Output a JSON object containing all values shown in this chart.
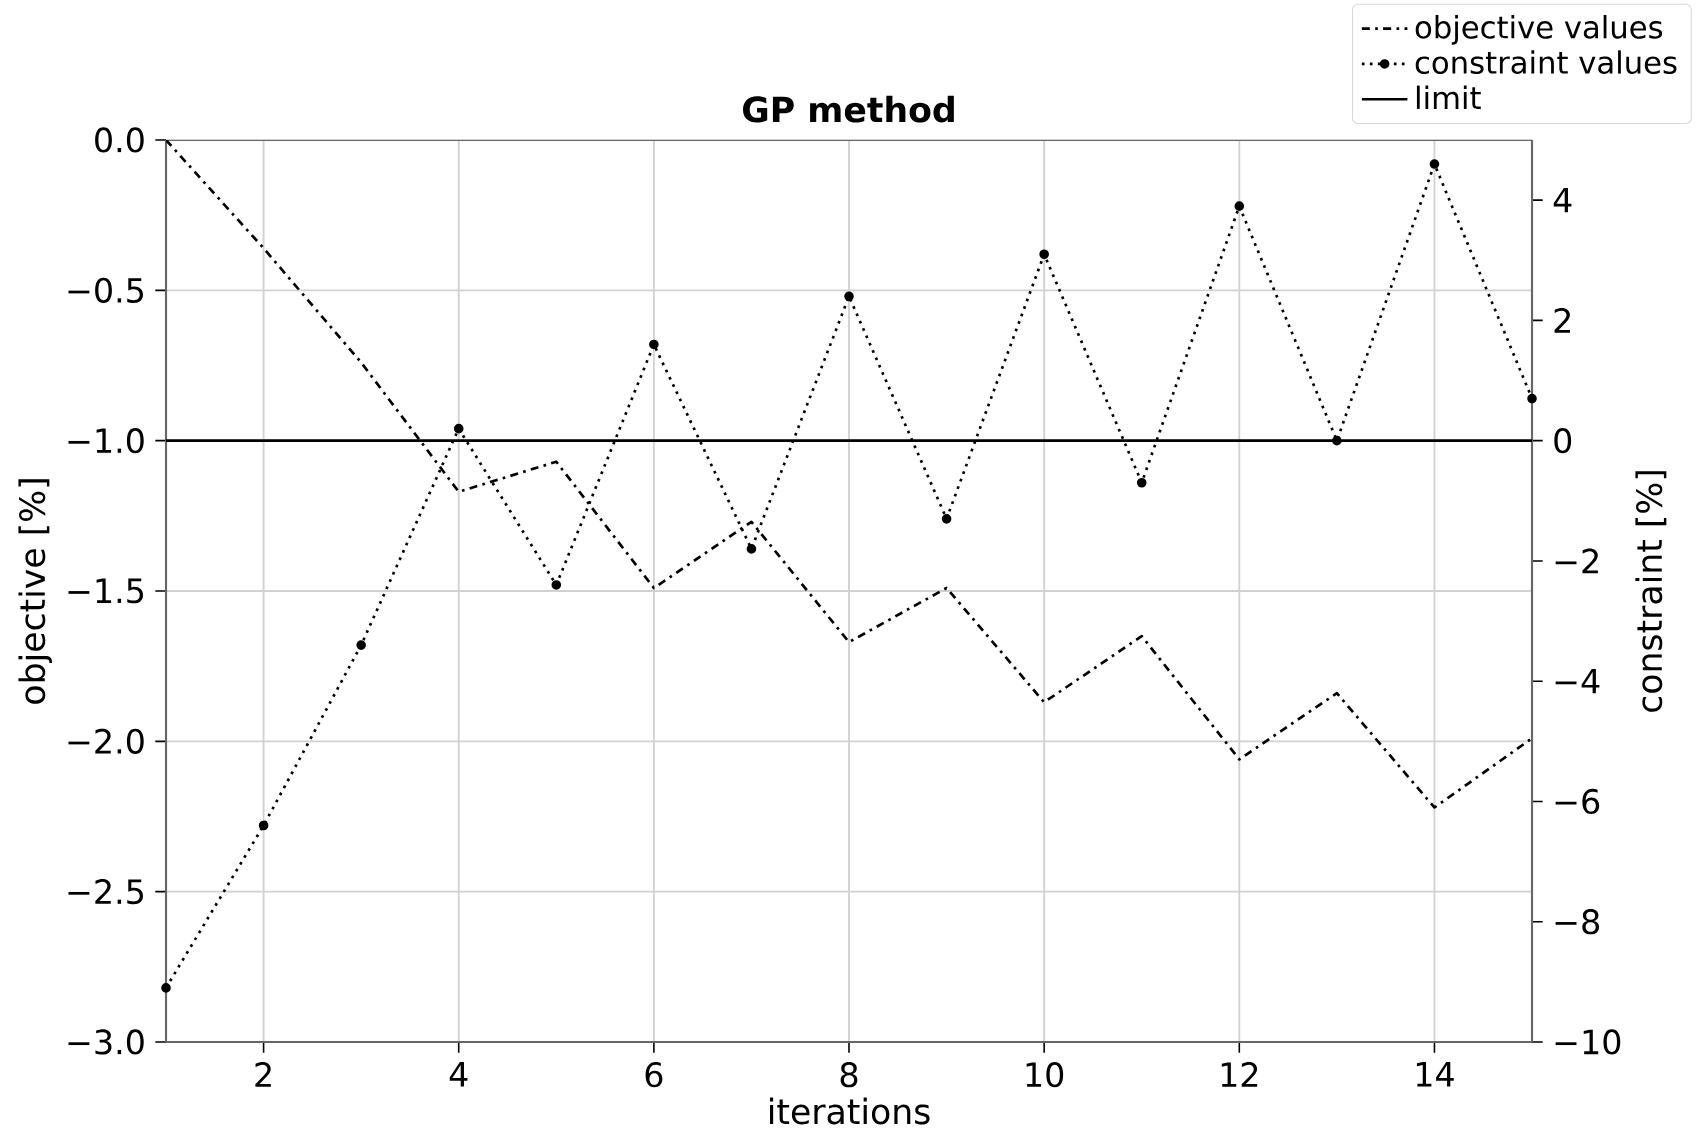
{
  "chart_data": {
    "type": "line",
    "title": "GP method",
    "xlabel": "iterations",
    "ylabel": "objective [%]",
    "y2label": "constraint [%]",
    "x": [
      1,
      2,
      3,
      4,
      5,
      6,
      7,
      8,
      9,
      10,
      11,
      12,
      13,
      14,
      15
    ],
    "series": [
      {
        "name": "objective values",
        "color": "#000000",
        "line_style": "dashdot",
        "marker": "none",
        "values": [
          0.0,
          -0.36,
          -0.74,
          -1.17,
          -1.07,
          -1.49,
          -1.27,
          -1.67,
          -1.49,
          -1.87,
          -1.65,
          -2.06,
          -1.84,
          -2.22,
          -1.99
        ]
      },
      {
        "name": "constraint values",
        "color": "#000000",
        "line_style": "dotted",
        "marker": "circle",
        "axis": "y2",
        "values": [
          -9.1,
          -6.4,
          -3.4,
          0.2,
          -2.4,
          1.6,
          -1.8,
          2.4,
          -1.3,
          3.1,
          -0.7,
          3.9,
          0.0,
          4.6,
          0.7
        ]
      },
      {
        "name": "limit",
        "color": "#000000",
        "line_style": "solid",
        "marker": "none",
        "axis": "y2",
        "x": [
          1,
          15
        ],
        "values": [
          0,
          0
        ]
      }
    ],
    "xlim": [
      1,
      15
    ],
    "xticks": [
      2,
      4,
      6,
      8,
      10,
      12,
      14
    ],
    "ylim": [
      -3,
      0
    ],
    "yticks": [
      {
        "value": -3,
        "label": "−3.0"
      },
      {
        "value": -2.5,
        "label": "−2.5"
      },
      {
        "value": -2,
        "label": "−2.0"
      },
      {
        "value": -1.5,
        "label": "−1.5"
      },
      {
        "value": -1,
        "label": "−1.0"
      },
      {
        "value": -0.5,
        "label": "−0.5"
      },
      {
        "value": 0,
        "label": "0.0"
      }
    ],
    "y2lim": [
      -10,
      5
    ],
    "y2ticks": [
      {
        "value": -10,
        "label": "−10"
      },
      {
        "value": -8,
        "label": "−8"
      },
      {
        "value": -6,
        "label": "−6"
      },
      {
        "value": -4,
        "label": "−4"
      },
      {
        "value": -2,
        "label": "−2"
      },
      0,
      2,
      4
    ],
    "grid": true,
    "legend": "top right"
  }
}
